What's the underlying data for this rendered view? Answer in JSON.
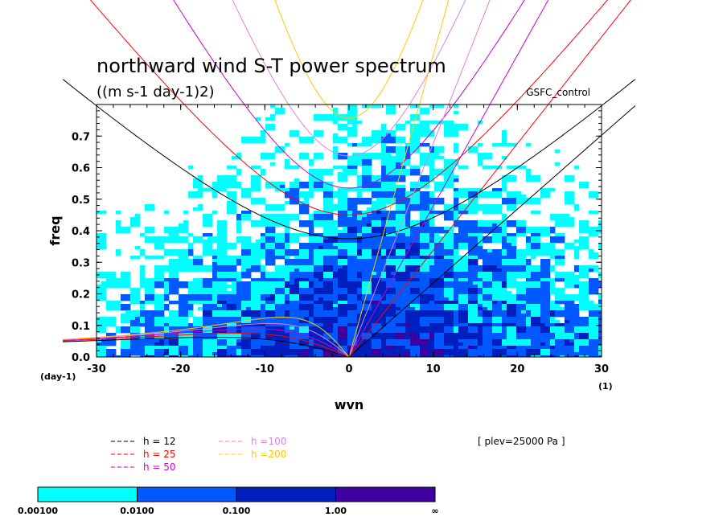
{
  "chart_data": {
    "type": "heatmap",
    "title": "northward wind S-T power spectrum",
    "subtitle": "((m s-1 day-1)2)",
    "run_label": "GSFC_control",
    "xlabel": "wvn",
    "ylabel": "freq",
    "x_unit_label": "(1)",
    "y_unit_label": "(day-1)",
    "xlim": [
      -30,
      30
    ],
    "ylim": [
      0,
      0.8
    ],
    "x_ticks": [
      -30,
      -20,
      -10,
      0,
      10,
      20,
      30
    ],
    "x_tick_labels": [
      "-30",
      "-20",
      "-10",
      "0",
      "10",
      "20",
      "30"
    ],
    "y_ticks": [
      0,
      0.1,
      0.2,
      0.3,
      0.4,
      0.5,
      0.6,
      0.7
    ],
    "y_tick_labels": [
      "0.0",
      "0.1",
      "0.2",
      "0.3",
      "0.4",
      "0.5",
      "0.6",
      "0.7"
    ],
    "level_note": "[ plev=25000 Pa ]",
    "colorbar": {
      "colors": [
        "#00ffff",
        "#0059ff",
        "#001fbf",
        "#4000a0"
      ],
      "labels": [
        "0.00100",
        "0.0100",
        "0.100",
        "1.00",
        "∞"
      ]
    },
    "dispersion_curves": [
      {
        "label": "h = 12",
        "h": 12,
        "color": "#000000"
      },
      {
        "label": "h = 25",
        "h": 25,
        "color": "#ff0000"
      },
      {
        "label": "h = 50",
        "h": 50,
        "color": "#cc00cc"
      },
      {
        "label": "h =100",
        "h": 100,
        "color": "#e080e0"
      },
      {
        "label": "h =200",
        "h": 200,
        "color": "#ffc800"
      }
    ]
  }
}
